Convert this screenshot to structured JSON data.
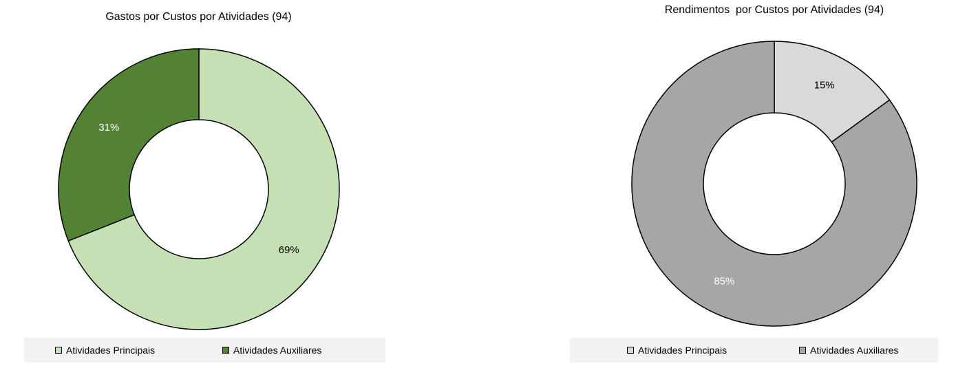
{
  "chart_data": [
    {
      "type": "pie",
      "variant": "donut",
      "title": "Gastos por Custos por Atividades (94)",
      "categories": [
        "Atividades Principais",
        "Atividades Auxiliares"
      ],
      "values": [
        69,
        31
      ],
      "labels": [
        "69%",
        "31%"
      ],
      "colors": [
        "#c5e0b4",
        "#548235"
      ],
      "label_colors": [
        "#000000",
        "#ffffff"
      ],
      "legend_placement": "bottom"
    },
    {
      "type": "pie",
      "variant": "donut",
      "title": "Rendimentos  por Custos por Atividades (94)",
      "categories": [
        "Atividades Principais",
        "Atividades Auxiliares"
      ],
      "values": [
        15,
        85
      ],
      "labels": [
        "15%",
        "85%"
      ],
      "colors": [
        "#d9d9d9",
        "#a6a6a6"
      ],
      "label_colors": [
        "#000000",
        "#ffffff"
      ],
      "legend_placement": "bottom"
    }
  ]
}
